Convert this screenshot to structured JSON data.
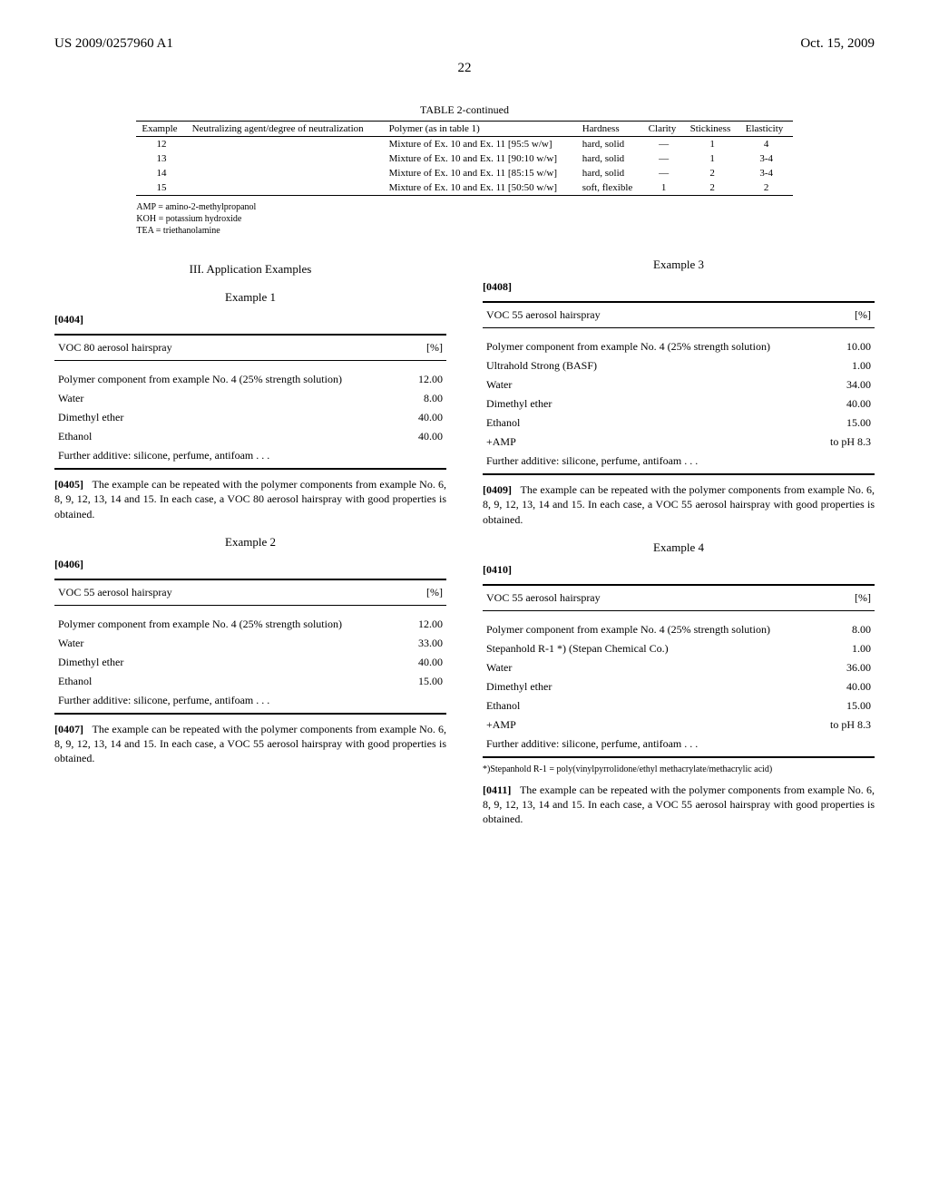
{
  "header": {
    "left": "US 2009/0257960 A1",
    "right": "Oct. 15, 2009",
    "page": "22"
  },
  "top_table": {
    "caption": "TABLE 2-continued",
    "columns": [
      "Example",
      "Neutralizing agent/degree of neutralization",
      "Polymer (as in table 1)",
      "Hardness",
      "Clarity",
      "Stickiness",
      "Elasticity"
    ],
    "rows": [
      [
        "12",
        "",
        "Mixture of Ex. 10 and Ex. 11 [95:5 w/w]",
        "hard, solid",
        "—",
        "1",
        "4"
      ],
      [
        "13",
        "",
        "Mixture of Ex. 10 and Ex. 11 [90:10 w/w]",
        "hard, solid",
        "—",
        "1",
        "3-4"
      ],
      [
        "14",
        "",
        "Mixture of Ex. 10 and Ex. 11 [85:15 w/w]",
        "hard, solid",
        "—",
        "2",
        "3-4"
      ],
      [
        "15",
        "",
        "Mixture of Ex. 10 and Ex. 11 [50:50 w/w]",
        "soft, flexible",
        "1",
        "2",
        "2"
      ]
    ],
    "footnotes": [
      "AMP = amino-2-methylpropanol",
      "KOH = potassium hydroxide",
      "TEA = triethanolamine"
    ]
  },
  "app_section_heading": "III. Application Examples",
  "examples": {
    "ex1": {
      "heading": "Example 1",
      "para_num": "[0404]",
      "title": "VOC 80 aerosol hairspray",
      "unit": "[%]",
      "rows": [
        [
          "Polymer component from example No. 4 (25% strength solution)",
          "12.00"
        ],
        [
          "Water",
          "8.00"
        ],
        [
          "Dimethyl ether",
          "40.00"
        ],
        [
          "Ethanol",
          "40.00"
        ],
        [
          "Further additive: silicone, perfume, antifoam . . .",
          ""
        ]
      ],
      "after_num": "[0405]",
      "after_text": "The example can be repeated with the polymer components from example No. 6, 8, 9, 12, 13, 14 and 15. In each case, a VOC 80 aerosol hairspray with good properties is obtained."
    },
    "ex2": {
      "heading": "Example 2",
      "para_num": "[0406]",
      "title": "VOC 55 aerosol hairspray",
      "unit": "[%]",
      "rows": [
        [
          "Polymer component from example No. 4 (25% strength solution)",
          "12.00"
        ],
        [
          "Water",
          "33.00"
        ],
        [
          "Dimethyl ether",
          "40.00"
        ],
        [
          "Ethanol",
          "15.00"
        ],
        [
          "Further additive: silicone, perfume, antifoam . . .",
          ""
        ]
      ],
      "after_num": "[0407]",
      "after_text": "The example can be repeated with the polymer components from example No. 6, 8, 9, 12, 13, 14 and 15. In each case, a VOC 55 aerosol hairspray with good properties is obtained."
    },
    "ex3": {
      "heading": "Example 3",
      "para_num": "[0408]",
      "title": "VOC 55 aerosol hairspray",
      "unit": "[%]",
      "rows": [
        [
          "Polymer component from example No. 4 (25% strength solution)",
          "10.00"
        ],
        [
          "Ultrahold Strong (BASF)",
          "1.00"
        ],
        [
          "Water",
          "34.00"
        ],
        [
          "Dimethyl ether",
          "40.00"
        ],
        [
          "Ethanol",
          "15.00"
        ],
        [
          "+AMP",
          "to pH 8.3"
        ],
        [
          "Further additive: silicone, perfume, antifoam . . .",
          ""
        ]
      ],
      "after_num": "[0409]",
      "after_text": "The example can be repeated with the polymer components from example No. 6, 8, 9, 12, 13, 14 and 15. In each case, a VOC 55 aerosol hairspray with good properties is obtained."
    },
    "ex4": {
      "heading": "Example 4",
      "para_num": "[0410]",
      "title": "VOC 55 aerosol hairspray",
      "unit": "[%]",
      "rows": [
        [
          "Polymer component from example No. 4 (25% strength solution)",
          "8.00"
        ],
        [
          "Stepanhold R-1 *) (Stepan Chemical Co.)",
          "1.00"
        ],
        [
          "Water",
          "36.00"
        ],
        [
          "Dimethyl ether",
          "40.00"
        ],
        [
          "Ethanol",
          "15.00"
        ],
        [
          "+AMP",
          "to pH 8.3"
        ],
        [
          "Further additive: silicone, perfume, antifoam . . .",
          ""
        ]
      ],
      "footnote": "*)Stepanhold R-1 = poly(vinylpyrrolidone/ethyl methacrylate/methacrylic acid)",
      "after_num": "[0411]",
      "after_text": "The example can be repeated with the polymer components from example No. 6, 8, 9, 12, 13, 14 and 15. In each case, a VOC 55 aerosol hairspray with good properties is obtained."
    }
  }
}
